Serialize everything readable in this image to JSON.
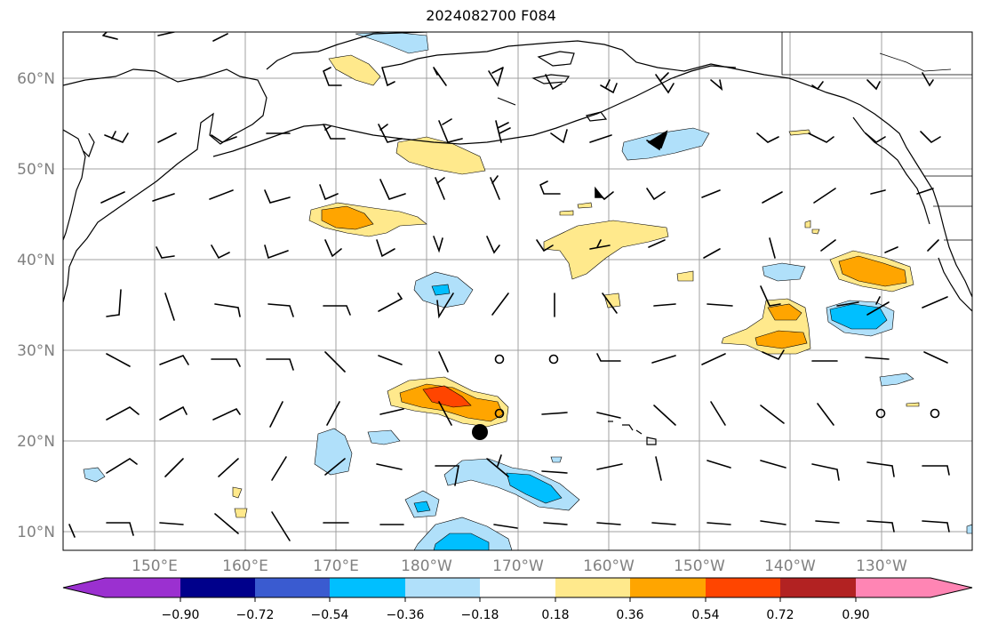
{
  "title": "2024082700 F084",
  "map": {
    "lat_labels": [
      "60°N",
      "50°N",
      "40°N",
      "30°N",
      "20°N",
      "10°N"
    ],
    "lon_labels": [
      "150°E",
      "160°E",
      "170°E",
      "180°W",
      "170°W",
      "160°W",
      "150°W",
      "140°W",
      "130°W"
    ]
  },
  "colorbar": {
    "tick_labels": [
      "−0.90",
      "−0.72",
      "−0.54",
      "−0.36",
      "−0.18",
      "0.18",
      "0.36",
      "0.54",
      "0.72",
      "0.90"
    ],
    "colors": [
      "#9b30d0",
      "#00008b",
      "#3a5bd0",
      "#00bfff",
      "#b0e0fa",
      "#ffffff",
      "#ffe98c",
      "#ffa500",
      "#ff4500",
      "#b22222",
      "#ff85b4"
    ]
  },
  "colors": {
    "light_blue": "#b0e0fa",
    "blue": "#00bfff",
    "yellow": "#ffe98c",
    "orange": "#ffa500",
    "red": "#ff4500"
  }
}
